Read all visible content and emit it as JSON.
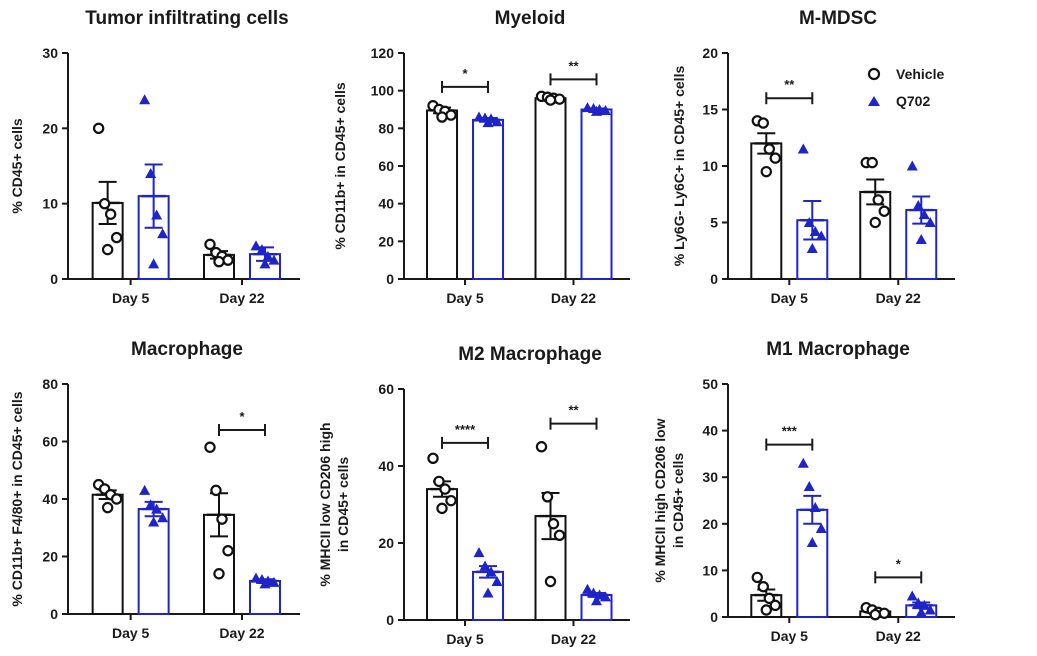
{
  "colors": {
    "vehicle": "#111111",
    "q702": "#1f24c8",
    "axis": "#1a1a1a"
  },
  "legend": {
    "vehicle": "Vehicle",
    "q702": "Q702",
    "vehicle_marker": "open-circle",
    "q702_marker": "filled-triangle"
  },
  "chart_data": [
    {
      "type": "bar",
      "title": "Tumor infiltrating cells",
      "ylabel": [
        "% CD45+ cells"
      ],
      "ylim": [
        0,
        30
      ],
      "yticks": [
        "0",
        "10",
        "20",
        "30"
      ],
      "categories": [
        "Day 5",
        "Day 22"
      ],
      "series": [
        {
          "name": "Vehicle",
          "values": [
            10.1,
            3.2
          ],
          "sem": [
            2.8,
            0.5
          ],
          "points": [
            [
              20.0,
              10.0,
              8.6,
              5.5,
              3.9
            ],
            [
              4.6,
              3.5,
              3.0,
              2.5,
              2.3
            ]
          ]
        },
        {
          "name": "Q702",
          "values": [
            11.0,
            3.3
          ],
          "sem": [
            4.2,
            0.9
          ],
          "points": [
            [
              23.8,
              14.0,
              8.5,
              6.0,
              2.0
            ],
            [
              4.4,
              3.9,
              3.0,
              2.5,
              2.0
            ]
          ]
        }
      ],
      "significance": []
    },
    {
      "type": "bar",
      "title": "Myeloid",
      "ylabel": [
        "% CD11b+ in CD45+ cells"
      ],
      "ylim": [
        0,
        120
      ],
      "yticks": [
        "0",
        "20",
        "40",
        "60",
        "80",
        "100",
        "120"
      ],
      "categories": [
        "Day 5",
        "Day 22"
      ],
      "series": [
        {
          "name": "Vehicle",
          "values": [
            89.5,
            96.0
          ],
          "sem": [
            1.5,
            0.6
          ],
          "points": [
            [
              92.0,
              90.0,
              89.0,
              87.0,
              86.0
            ],
            [
              97.0,
              96.5,
              96.0,
              95.5,
              95.0
            ]
          ]
        },
        {
          "name": "Q702",
          "values": [
            84.5,
            90.0
          ],
          "sem": [
            1.0,
            0.5
          ],
          "points": [
            [
              86.0,
              85.5,
              85.0,
              83.5,
              83.0
            ],
            [
              91.0,
              90.5,
              90.0,
              89.5,
              89.0
            ]
          ]
        }
      ],
      "significance": [
        {
          "category": "Day 5",
          "label": "*",
          "y": 102
        },
        {
          "category": "Day 22",
          "label": "**",
          "y": 106
        }
      ]
    },
    {
      "type": "bar",
      "title": "M-MDSC",
      "ylabel": [
        "% Ly6G- Ly6C+ in CD45+ cells"
      ],
      "ylim": [
        0,
        20
      ],
      "yticks": [
        "0",
        "5",
        "10",
        "15",
        "20"
      ],
      "categories": [
        "Day 5",
        "Day 22"
      ],
      "series": [
        {
          "name": "Vehicle",
          "values": [
            12.0,
            7.7
          ],
          "sem": [
            0.9,
            1.1
          ],
          "points": [
            [
              14.0,
              13.8,
              11.5,
              10.7,
              9.5
            ],
            [
              10.3,
              10.3,
              7.0,
              6.0,
              5.0
            ]
          ]
        },
        {
          "name": "Q702",
          "values": [
            5.2,
            6.1
          ],
          "sem": [
            1.7,
            1.2
          ],
          "points": [
            [
              11.5,
              5.0,
              4.2,
              3.8,
              2.7
            ],
            [
              10.0,
              6.5,
              5.7,
              5.0,
              3.5
            ]
          ]
        }
      ],
      "significance": [
        {
          "category": "Day 5",
          "label": "**",
          "y": 16
        }
      ]
    },
    {
      "type": "bar",
      "title": "Macrophage",
      "ylabel": [
        "% CD11b+ F4/80+ in CD45+ cells"
      ],
      "ylim": [
        0,
        80
      ],
      "yticks": [
        "0",
        "20",
        "40",
        "60",
        "80"
      ],
      "categories": [
        "Day 5",
        "Day 22"
      ],
      "series": [
        {
          "name": "Vehicle",
          "values": [
            41.5,
            34.5
          ],
          "sem": [
            1.5,
            7.5
          ],
          "points": [
            [
              45.0,
              43.5,
              41.5,
              40.0,
              37.0
            ],
            [
              58.0,
              43.0,
              33.0,
              22.0,
              14.0
            ]
          ]
        },
        {
          "name": "Q702",
          "values": [
            36.5,
            11.5
          ],
          "sem": [
            2.5,
            0.6
          ],
          "points": [
            [
              43.0,
              38.0,
              36.5,
              33.5,
              32.0
            ],
            [
              12.5,
              12.0,
              11.5,
              11.0,
              10.5
            ]
          ]
        }
      ],
      "significance": [
        {
          "category": "Day 22",
          "label": "*",
          "y": 64
        }
      ]
    },
    {
      "type": "bar",
      "title": "M2 Macrophage",
      "ylabel": [
        "% MHCII low CD206 high",
        "in CD45+ cells"
      ],
      "ylim": [
        0,
        60
      ],
      "yticks": [
        "0",
        "20",
        "40",
        "60"
      ],
      "categories": [
        "Day 5",
        "Day 22"
      ],
      "series": [
        {
          "name": "Vehicle",
          "values": [
            34.0,
            27.0
          ],
          "sem": [
            2.0,
            6.0
          ],
          "points": [
            [
              42.0,
              36.0,
              34.0,
              31.0,
              29.0
            ],
            [
              45.0,
              32.0,
              25.0,
              22.0,
              10.0
            ]
          ]
        },
        {
          "name": "Q702",
          "values": [
            12.5,
            6.5
          ],
          "sem": [
            1.5,
            0.5
          ],
          "points": [
            [
              17.5,
              14.0,
              12.5,
              10.0,
              7.0
            ],
            [
              8.0,
              7.0,
              6.5,
              6.0,
              5.0
            ]
          ]
        }
      ],
      "significance": [
        {
          "category": "Day 5",
          "label": "****",
          "y": 46
        },
        {
          "category": "Day 22",
          "label": "**",
          "y": 51
        }
      ]
    },
    {
      "type": "bar",
      "title": "M1 Macrophage",
      "ylabel": [
        "% MHCII high CD206 low",
        "in CD45+ cells"
      ],
      "ylim": [
        0,
        50
      ],
      "yticks": [
        "0",
        "10",
        "20",
        "30",
        "40",
        "50"
      ],
      "categories": [
        "Day 5",
        "Day 22"
      ],
      "series": [
        {
          "name": "Vehicle",
          "values": [
            4.7,
            1.2
          ],
          "sem": [
            1.2,
            0.3
          ],
          "points": [
            [
              8.5,
              6.5,
              4.0,
              2.5,
              1.5
            ],
            [
              2.0,
              1.5,
              1.0,
              0.8,
              0.5
            ]
          ]
        },
        {
          "name": "Q702",
          "values": [
            23.0,
            2.5
          ],
          "sem": [
            3.0,
            0.6
          ],
          "points": [
            [
              33.0,
              28.0,
              23.5,
              19.0,
              16.0
            ],
            [
              4.5,
              3.0,
              2.5,
              1.5,
              1.0
            ]
          ]
        }
      ],
      "significance": [
        {
          "category": "Day 5",
          "label": "***",
          "y": 37
        },
        {
          "category": "Day 22",
          "label": "*",
          "y": 8.5
        }
      ]
    }
  ]
}
